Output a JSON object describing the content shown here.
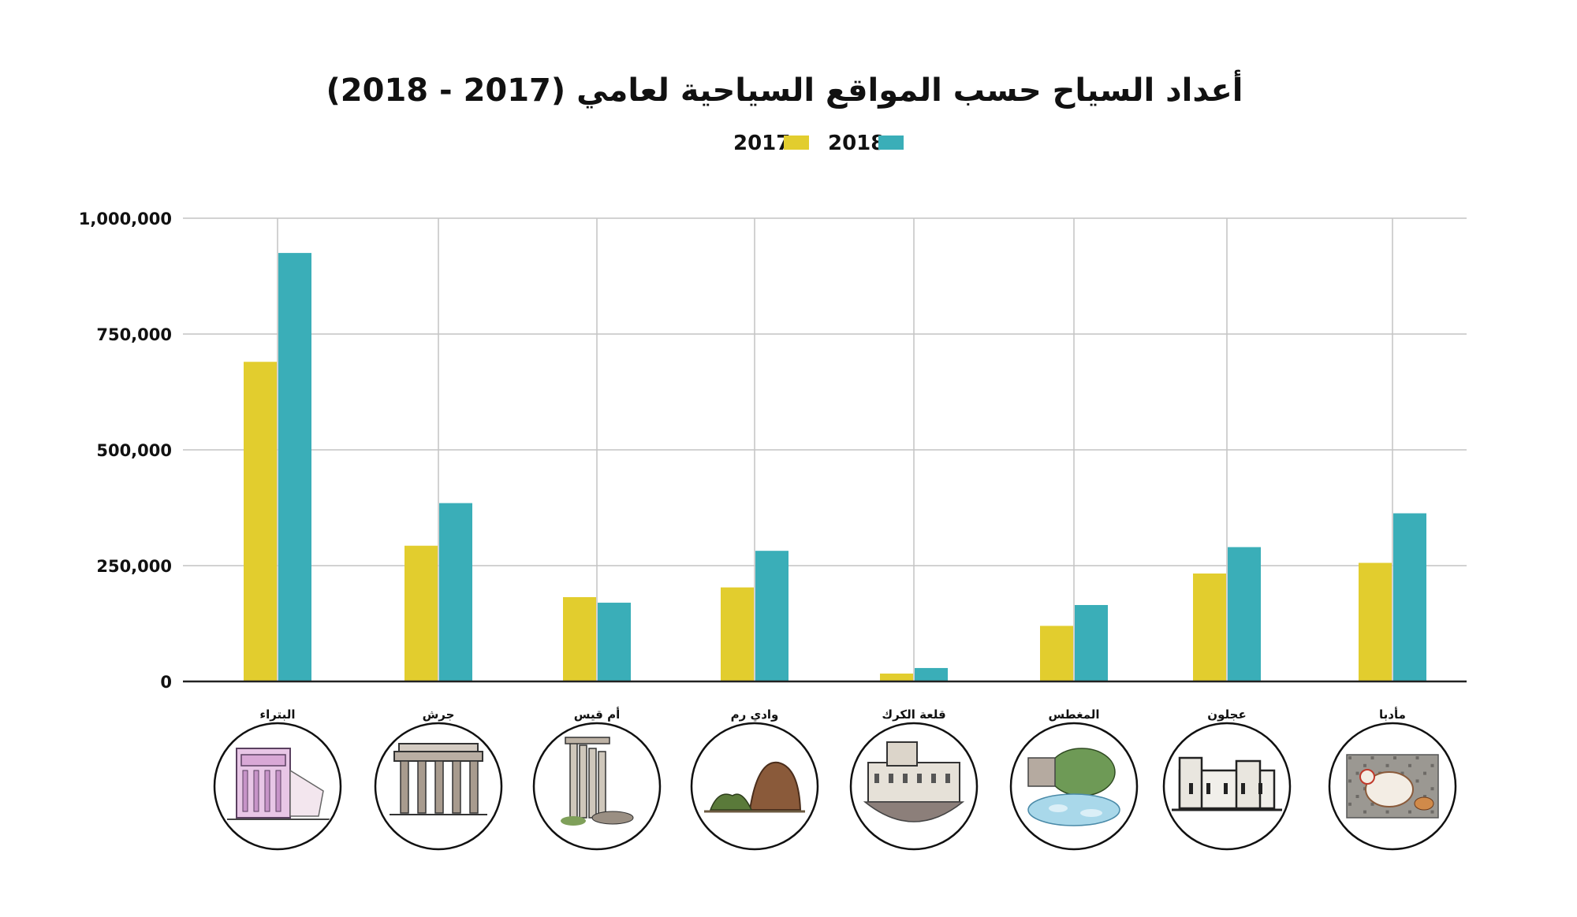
{
  "chart_data": {
    "type": "bar",
    "title": "أعداد السياح حسب المواقع السياحية لعامي (2017 - 2018)",
    "xlabel": "",
    "ylabel": "",
    "categories": [
      "البتراء",
      "جرش",
      "أم قيس",
      "وادي رم",
      "قلعة الكرك",
      "المغطس",
      "عجلون",
      "مأدبا"
    ],
    "series": [
      {
        "name": "2017",
        "color": "#e2cd2e",
        "values": [
          690000,
          293000,
          182000,
          203000,
          17000,
          120000,
          233000,
          256000
        ]
      },
      {
        "name": "2018",
        "color": "#3aaeb8",
        "values": [
          925000,
          385000,
          170000,
          282000,
          29000,
          165000,
          290000,
          363000
        ]
      }
    ],
    "ylim": [
      0,
      1000000
    ],
    "yticks": [
      0,
      250000,
      500000,
      750000,
      1000000
    ],
    "ytick_labels": [
      "0",
      "250,000",
      "500,000",
      "750,000",
      "1,000,000"
    ],
    "grid": true,
    "legend_position": "top-center",
    "illustration_icons": [
      "petra-treasury-icon",
      "jerash-columns-icon",
      "umm-qais-ruins-icon",
      "wadi-rum-rocks-icon",
      "karak-castle-icon",
      "baptism-site-icon",
      "ajloun-castle-icon",
      "madaba-mosaic-icon"
    ]
  }
}
